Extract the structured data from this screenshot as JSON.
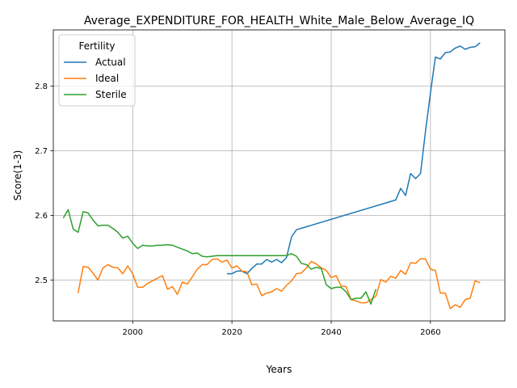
{
  "chart_data": {
    "type": "line",
    "title": "Average_EXPENDITURE_FOR_HEALTH_White_Male_Below_Average_IQ",
    "xlabel": "Years",
    "ylabel": "Score(1-3)",
    "xlim": [
      1984,
      2075
    ],
    "ylim": [
      2.437,
      2.887
    ],
    "xticks": [
      2000,
      2020,
      2040,
      2060
    ],
    "yticks": [
      2.5,
      2.6,
      2.7,
      2.8
    ],
    "ytick_labels": [
      "2.5",
      "2.6",
      "2.7",
      "2.8"
    ],
    "grid": true,
    "legend": {
      "title": "Fertility",
      "position": "upper left"
    },
    "series": [
      {
        "name": "Actual",
        "color": "#1f77b4",
        "points": [
          [
            2019,
            2.51
          ],
          [
            2020,
            2.51
          ],
          [
            2021,
            2.514
          ],
          [
            2022,
            2.514
          ],
          [
            2023,
            2.51
          ],
          [
            2024,
            2.518
          ],
          [
            2025,
            2.525
          ],
          [
            2026,
            2.525
          ],
          [
            2027,
            2.532
          ],
          [
            2028,
            2.528
          ],
          [
            2029,
            2.532
          ],
          [
            2030,
            2.527
          ],
          [
            2031,
            2.535
          ],
          [
            2032,
            2.567
          ],
          [
            2033,
            2.578
          ],
          [
            2053,
            2.624
          ],
          [
            2054,
            2.642
          ],
          [
            2055,
            2.631
          ],
          [
            2056,
            2.665
          ],
          [
            2057,
            2.657
          ],
          [
            2058,
            2.665
          ],
          [
            2059,
            2.73
          ],
          [
            2060,
            2.79
          ],
          [
            2061,
            2.845
          ],
          [
            2062,
            2.842
          ],
          [
            2063,
            2.852
          ],
          [
            2064,
            2.853
          ],
          [
            2065,
            2.859
          ],
          [
            2066,
            2.862
          ],
          [
            2067,
            2.857
          ],
          [
            2068,
            2.86
          ],
          [
            2069,
            2.861
          ],
          [
            2070,
            2.867
          ]
        ]
      },
      {
        "name": "Ideal",
        "color": "#ff7f0e",
        "points": [
          [
            1989,
            2.48
          ],
          [
            1990,
            2.521
          ],
          [
            1991,
            2.52
          ],
          [
            1992,
            2.511
          ],
          [
            1993,
            2.5
          ],
          [
            1994,
            2.519
          ],
          [
            1995,
            2.524
          ],
          [
            1996,
            2.52
          ],
          [
            1997,
            2.519
          ],
          [
            1998,
            2.51
          ],
          [
            1999,
            2.522
          ],
          [
            2000,
            2.51
          ],
          [
            2001,
            2.489
          ],
          [
            2002,
            2.489
          ],
          [
            2003,
            2.495
          ],
          [
            2004,
            2.499
          ],
          [
            2005,
            2.503
          ],
          [
            2006,
            2.507
          ],
          [
            2007,
            2.486
          ],
          [
            2008,
            2.49
          ],
          [
            2009,
            2.478
          ],
          [
            2010,
            2.497
          ],
          [
            2011,
            2.494
          ],
          [
            2012,
            2.505
          ],
          [
            2013,
            2.517
          ],
          [
            2014,
            2.524
          ],
          [
            2015,
            2.524
          ],
          [
            2016,
            2.532
          ],
          [
            2017,
            2.533
          ],
          [
            2018,
            2.528
          ],
          [
            2019,
            2.531
          ],
          [
            2020,
            2.519
          ],
          [
            2021,
            2.522
          ],
          [
            2022,
            2.514
          ],
          [
            2023,
            2.513
          ],
          [
            2024,
            2.493
          ],
          [
            2025,
            2.494
          ],
          [
            2026,
            2.476
          ],
          [
            2027,
            2.48
          ],
          [
            2028,
            2.482
          ],
          [
            2029,
            2.487
          ],
          [
            2030,
            2.483
          ],
          [
            2031,
            2.492
          ],
          [
            2032,
            2.499
          ],
          [
            2033,
            2.51
          ],
          [
            2034,
            2.511
          ],
          [
            2035,
            2.519
          ],
          [
            2036,
            2.529
          ],
          [
            2037,
            2.525
          ],
          [
            2038,
            2.519
          ],
          [
            2039,
            2.515
          ],
          [
            2040,
            2.504
          ],
          [
            2041,
            2.507
          ],
          [
            2042,
            2.491
          ],
          [
            2043,
            2.49
          ],
          [
            2044,
            2.47
          ],
          [
            2045,
            2.468
          ],
          [
            2046,
            2.465
          ],
          [
            2047,
            2.465
          ],
          [
            2048,
            2.47
          ],
          [
            2049,
            2.475
          ],
          [
            2050,
            2.501
          ],
          [
            2051,
            2.497
          ],
          [
            2052,
            2.506
          ],
          [
            2053,
            2.503
          ],
          [
            2054,
            2.515
          ],
          [
            2055,
            2.509
          ],
          [
            2056,
            2.527
          ],
          [
            2057,
            2.526
          ],
          [
            2058,
            2.533
          ],
          [
            2059,
            2.533
          ],
          [
            2060,
            2.517
          ],
          [
            2061,
            2.515
          ],
          [
            2062,
            2.48
          ],
          [
            2063,
            2.48
          ],
          [
            2064,
            2.456
          ],
          [
            2065,
            2.462
          ],
          [
            2066,
            2.458
          ],
          [
            2067,
            2.47
          ],
          [
            2068,
            2.472
          ],
          [
            2069,
            2.499
          ],
          [
            2070,
            2.496
          ]
        ]
      },
      {
        "name": "Sterile",
        "color": "#2ca02c",
        "points": [
          [
            1986,
            2.596
          ],
          [
            1987,
            2.609
          ],
          [
            1988,
            2.579
          ],
          [
            1989,
            2.574
          ],
          [
            1990,
            2.606
          ],
          [
            1991,
            2.604
          ],
          [
            1992,
            2.593
          ],
          [
            1993,
            2.584
          ],
          [
            1994,
            2.585
          ],
          [
            1995,
            2.585
          ],
          [
            1996,
            2.58
          ],
          [
            1997,
            2.574
          ],
          [
            1998,
            2.565
          ],
          [
            1999,
            2.568
          ],
          [
            2000,
            2.557
          ],
          [
            2001,
            2.549
          ],
          [
            2002,
            2.554
          ],
          [
            2003,
            2.553
          ],
          [
            2004,
            2.553
          ],
          [
            2005,
            2.554
          ],
          [
            2006,
            2.554
          ],
          [
            2007,
            2.555
          ],
          [
            2008,
            2.554
          ],
          [
            2009,
            2.551
          ],
          [
            2010,
            2.548
          ],
          [
            2011,
            2.545
          ],
          [
            2012,
            2.541
          ],
          [
            2013,
            2.542
          ],
          [
            2014,
            2.537
          ],
          [
            2015,
            2.536
          ],
          [
            2016,
            2.537
          ],
          [
            2017,
            2.538
          ],
          [
            2018,
            2.538
          ],
          [
            2019,
            2.538
          ],
          [
            2020,
            2.538
          ],
          [
            2021,
            2.538
          ],
          [
            2022,
            2.538
          ],
          [
            2023,
            2.538
          ],
          [
            2024,
            2.538
          ],
          [
            2025,
            2.538
          ],
          [
            2026,
            2.538
          ],
          [
            2027,
            2.538
          ],
          [
            2028,
            2.538
          ],
          [
            2029,
            2.538
          ],
          [
            2030,
            2.538
          ],
          [
            2031,
            2.538
          ],
          [
            2032,
            2.541
          ],
          [
            2033,
            2.537
          ],
          [
            2034,
            2.526
          ],
          [
            2035,
            2.524
          ],
          [
            2036,
            2.517
          ],
          [
            2037,
            2.52
          ],
          [
            2038,
            2.518
          ],
          [
            2039,
            2.493
          ],
          [
            2040,
            2.487
          ],
          [
            2041,
            2.489
          ],
          [
            2042,
            2.489
          ],
          [
            2043,
            2.482
          ],
          [
            2044,
            2.47
          ],
          [
            2045,
            2.472
          ],
          [
            2046,
            2.472
          ],
          [
            2047,
            2.482
          ],
          [
            2048,
            2.463
          ],
          [
            2049,
            2.486
          ]
        ]
      }
    ]
  }
}
